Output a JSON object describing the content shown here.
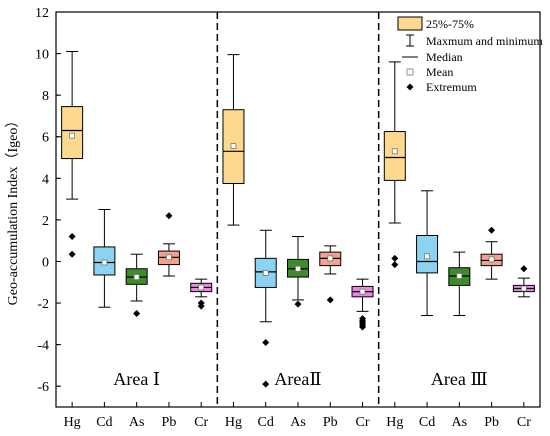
{
  "chart_data": {
    "type": "box",
    "ylabel": "Geo-accumulation Index（Igeo）",
    "ylim": [
      -7,
      12
    ],
    "yticks": [
      -6,
      -4,
      -2,
      0,
      2,
      4,
      6,
      8,
      10,
      12
    ],
    "categories": [
      "Hg",
      "Cd",
      "As",
      "Pb",
      "Cr"
    ],
    "colors": {
      "Hg": "#FCD98E",
      "Cd": "#8BD3F0",
      "As": "#3F8A2A",
      "Pb": "#F2A190",
      "Cr": "#E986E6"
    },
    "legend": {
      "placement": "top-right",
      "items": [
        {
          "label": "25%-75%",
          "marker": "box"
        },
        {
          "label": "Maxmum and minimum",
          "marker": "whisker"
        },
        {
          "label": "Median",
          "marker": "line"
        },
        {
          "label": "Mean",
          "marker": "square"
        },
        {
          "label": "Extremum",
          "marker": "diamond"
        }
      ]
    },
    "areas": [
      {
        "name": "Area Ⅰ",
        "boxes": [
          {
            "element": "Hg",
            "min": 3.0,
            "q1": 4.95,
            "median": 6.3,
            "q3": 7.45,
            "max": 10.1,
            "mean": 6.05,
            "outliers": [
              1.2,
              0.35
            ]
          },
          {
            "element": "Cd",
            "min": -2.2,
            "q1": -0.65,
            "median": -0.05,
            "q3": 0.7,
            "max": 2.5,
            "mean": -0.05,
            "outliers": []
          },
          {
            "element": "As",
            "min": -1.9,
            "q1": -1.1,
            "median": -0.75,
            "q3": -0.35,
            "max": 0.35,
            "mean": -0.75,
            "outliers": [
              -2.5
            ]
          },
          {
            "element": "Pb",
            "min": -0.7,
            "q1": -0.15,
            "median": 0.2,
            "q3": 0.5,
            "max": 0.85,
            "mean": 0.2,
            "outliers": [
              2.2
            ]
          },
          {
            "element": "Cr",
            "min": -1.7,
            "q1": -1.45,
            "median": -1.25,
            "q3": -1.05,
            "max": -0.85,
            "mean": -1.25,
            "outliers": [
              -2.0,
              -2.15
            ]
          }
        ]
      },
      {
        "name": "AreaⅡ",
        "boxes": [
          {
            "element": "Hg",
            "min": 1.75,
            "q1": 3.75,
            "median": 5.3,
            "q3": 7.3,
            "max": 9.95,
            "mean": 5.55,
            "outliers": []
          },
          {
            "element": "Cd",
            "min": -2.9,
            "q1": -1.25,
            "median": -0.5,
            "q3": 0.15,
            "max": 1.5,
            "mean": -0.55,
            "outliers": [
              -3.9,
              -5.9
            ]
          },
          {
            "element": "As",
            "min": -1.85,
            "q1": -0.75,
            "median": -0.35,
            "q3": 0.1,
            "max": 1.2,
            "mean": -0.35,
            "outliers": [
              -2.05
            ]
          },
          {
            "element": "Pb",
            "min": -0.6,
            "q1": -0.2,
            "median": 0.15,
            "q3": 0.45,
            "max": 0.75,
            "mean": 0.15,
            "outliers": [
              -1.85
            ]
          },
          {
            "element": "Cr",
            "min": -2.4,
            "q1": -1.7,
            "median": -1.45,
            "q3": -1.2,
            "max": -0.85,
            "mean": -1.45,
            "outliers": [
              -2.75,
              -2.85,
              -2.95,
              -3.05,
              -3.15
            ]
          }
        ]
      },
      {
        "name": "Area Ⅲ",
        "boxes": [
          {
            "element": "Hg",
            "min": 1.85,
            "q1": 3.9,
            "median": 5.0,
            "q3": 6.25,
            "max": 9.6,
            "mean": 5.3,
            "outliers": [
              0.15,
              -0.15
            ]
          },
          {
            "element": "Cd",
            "min": -2.6,
            "q1": -0.55,
            "median": 0.0,
            "q3": 1.25,
            "max": 3.4,
            "mean": 0.25,
            "outliers": []
          },
          {
            "element": "As",
            "min": -2.6,
            "q1": -1.15,
            "median": -0.7,
            "q3": -0.3,
            "max": 0.45,
            "mean": -0.7,
            "outliers": []
          },
          {
            "element": "Pb",
            "min": -0.85,
            "q1": -0.2,
            "median": 0.05,
            "q3": 0.35,
            "max": 0.95,
            "mean": 0.1,
            "outliers": [
              1.5
            ]
          },
          {
            "element": "Cr",
            "min": -1.7,
            "q1": -1.45,
            "median": -1.3,
            "q3": -1.15,
            "max": -0.8,
            "mean": -1.3,
            "outliers": [
              -0.35
            ]
          }
        ]
      }
    ]
  }
}
